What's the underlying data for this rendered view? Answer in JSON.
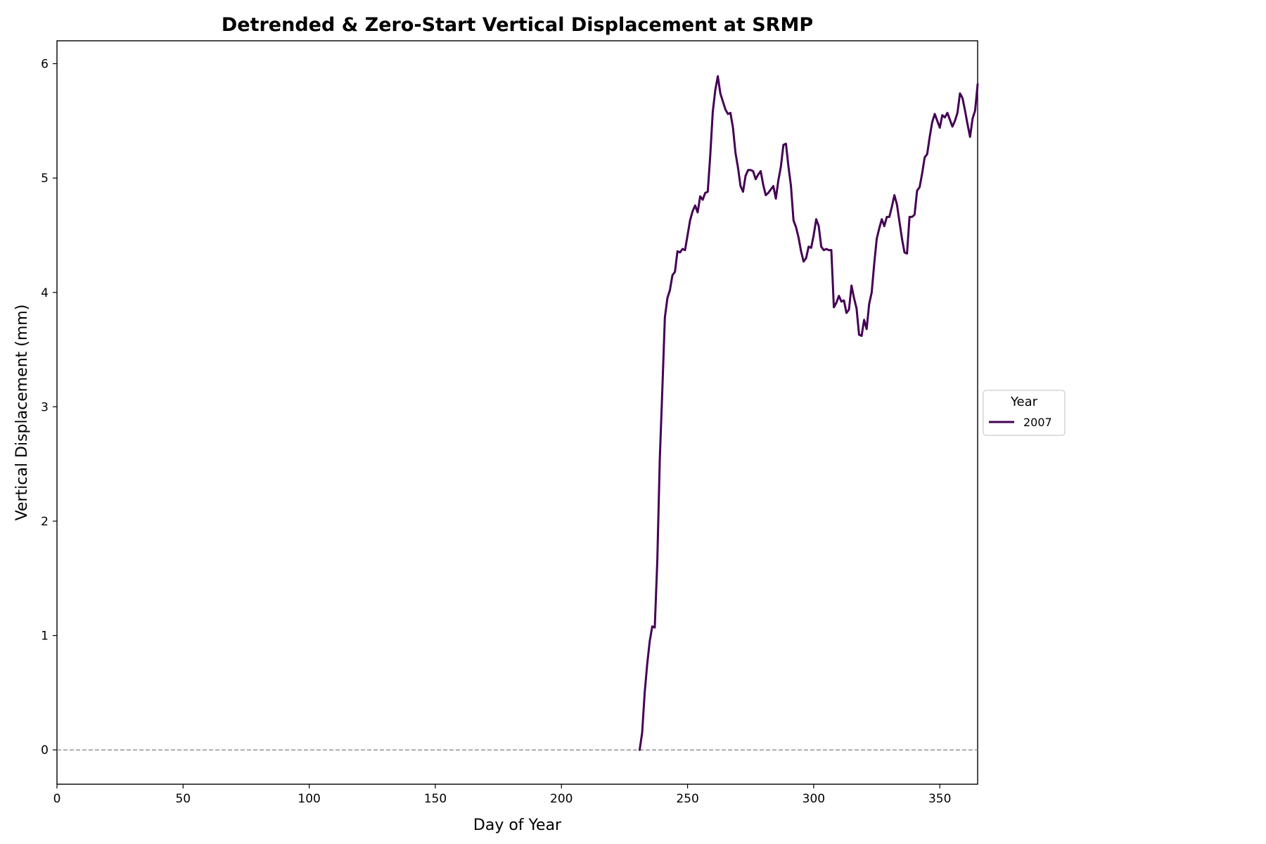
{
  "chart_data": {
    "type": "line",
    "title": "Detrended & Zero-Start Vertical Displacement at SRMP",
    "xlabel": "Day of Year",
    "ylabel": "Vertical Displacement (mm)",
    "xlim": [
      0,
      365
    ],
    "ylim": [
      -0.3,
      6.2
    ],
    "xticks": [
      0,
      50,
      100,
      150,
      200,
      250,
      300,
      350
    ],
    "yticks": [
      0,
      1,
      2,
      3,
      4,
      5,
      6
    ],
    "grid": false,
    "reference_line": {
      "y": 0,
      "style": "dashed",
      "color": "#808080"
    },
    "legend": {
      "title": "Year",
      "placement": "center-right outside"
    },
    "series": [
      {
        "name": "2007",
        "color": "#440154",
        "x": [
          231,
          232,
          233,
          234,
          235,
          236,
          237,
          238,
          239,
          240,
          241,
          242,
          243,
          244,
          245,
          246,
          247,
          248,
          249,
          250,
          251,
          252,
          253,
          254,
          255,
          256,
          257,
          258,
          259,
          260,
          261,
          262,
          263,
          264,
          265,
          266,
          267,
          268,
          269,
          270,
          271,
          272,
          273,
          274,
          275,
          276,
          277,
          278,
          279,
          280,
          281,
          282,
          283,
          284,
          285,
          286,
          287,
          288,
          289,
          290,
          291,
          292,
          293,
          294,
          295,
          296,
          297,
          298,
          299,
          300,
          301,
          302,
          303,
          304,
          305,
          306,
          307,
          308,
          309,
          310,
          311,
          312,
          313,
          314,
          315,
          316,
          317,
          318,
          319,
          320,
          321,
          322,
          323,
          324,
          325,
          326,
          327,
          328,
          329,
          330,
          331,
          332,
          333,
          334,
          335,
          336,
          337,
          338,
          339,
          340,
          341,
          342,
          343,
          344,
          345,
          346,
          347,
          348,
          349,
          350,
          351,
          352,
          353,
          354,
          355,
          356,
          357,
          358,
          359,
          360,
          361,
          362,
          363,
          364,
          365
        ],
        "values": [
          0.0,
          0.15,
          0.5,
          0.75,
          0.95,
          1.08,
          1.07,
          1.65,
          2.55,
          3.15,
          3.78,
          3.95,
          4.02,
          4.15,
          4.18,
          4.36,
          4.35,
          4.38,
          4.37,
          4.5,
          4.63,
          4.71,
          4.76,
          4.7,
          4.84,
          4.81,
          4.87,
          4.88,
          5.2,
          5.58,
          5.77,
          5.89,
          5.74,
          5.67,
          5.6,
          5.56,
          5.57,
          5.44,
          5.22,
          5.09,
          4.93,
          4.88,
          5.02,
          5.07,
          5.07,
          5.06,
          4.99,
          5.03,
          5.06,
          4.94,
          4.85,
          4.87,
          4.9,
          4.93,
          4.82,
          4.98,
          5.1,
          5.29,
          5.3,
          5.1,
          4.93,
          4.63,
          4.57,
          4.48,
          4.36,
          4.27,
          4.3,
          4.4,
          4.39,
          4.5,
          4.64,
          4.58,
          4.4,
          4.37,
          4.38,
          4.37,
          4.37,
          3.87,
          3.91,
          3.97,
          3.92,
          3.93,
          3.82,
          3.85,
          4.06,
          3.95,
          3.86,
          3.63,
          3.62,
          3.76,
          3.68,
          3.9,
          4.0,
          4.25,
          4.47,
          4.56,
          4.64,
          4.58,
          4.66,
          4.66,
          4.75,
          4.85,
          4.77,
          4.62,
          4.47,
          4.35,
          4.34,
          4.66,
          4.66,
          4.68,
          4.89,
          4.92,
          5.04,
          5.18,
          5.21,
          5.36,
          5.49,
          5.56,
          5.5,
          5.44,
          5.55,
          5.53,
          5.57,
          5.51,
          5.45,
          5.5,
          5.57,
          5.74,
          5.7,
          5.59,
          5.47,
          5.36,
          5.52,
          5.59,
          5.82
        ]
      }
    ]
  }
}
